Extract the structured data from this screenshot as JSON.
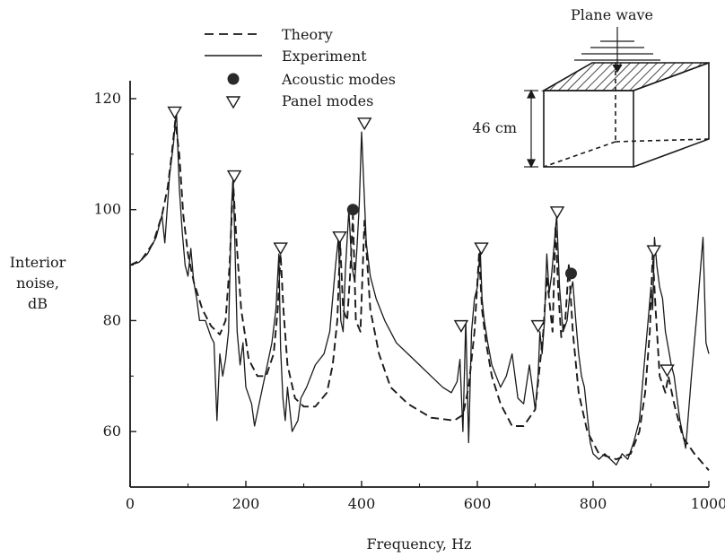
{
  "chart_data": {
    "type": "line",
    "title": "",
    "xlabel": "Frequency, Hz",
    "ylabel": [
      "Interior",
      "noise,",
      "dB"
    ],
    "xlim": [
      0,
      1000
    ],
    "ylim": [
      50,
      120
    ],
    "xticks": [
      0,
      200,
      400,
      600,
      800,
      1000
    ],
    "yticks": [
      60,
      80,
      100,
      120
    ],
    "grid": false,
    "legend_position": "top-center",
    "series": [
      {
        "name": "Theory",
        "style": "dashed",
        "x": [
          0,
          20,
          40,
          55,
          65,
          72,
          78,
          85,
          92,
          100,
          110,
          125,
          140,
          155,
          165,
          172,
          178,
          184,
          192,
          205,
          220,
          235,
          248,
          255,
          260,
          265,
          272,
          285,
          300,
          320,
          340,
          350,
          358,
          363,
          368,
          375,
          380,
          385,
          390,
          398,
          405,
          415,
          430,
          450,
          480,
          520,
          560,
          575,
          585,
          595,
          603,
          608,
          615,
          625,
          640,
          660,
          680,
          700,
          708,
          714,
          720,
          730,
          735,
          740,
          745,
          752,
          758,
          765,
          775,
          790,
          810,
          840,
          865,
          880,
          890,
          898,
          903,
          908,
          915,
          925,
          930,
          940,
          955,
          975,
          1000
        ],
        "y": [
          90,
          91,
          94,
          99,
          104,
          110,
          116,
          110,
          99,
          92,
          87,
          82,
          79,
          77.5,
          80,
          90,
          105,
          94,
          82,
          73,
          70,
          70,
          74,
          82,
          92,
          82,
          72,
          66,
          64.5,
          64.5,
          67,
          72,
          80,
          94,
          82,
          80,
          88,
          99,
          80,
          78,
          98,
          82,
          74,
          68,
          65,
          62.5,
          62,
          63,
          68,
          78,
          92,
          82,
          76,
          70,
          65,
          61,
          61,
          64,
          72,
          78,
          88,
          78,
          97,
          85,
          77,
          80,
          90,
          78,
          67,
          60,
          56,
          55,
          56,
          60,
          67,
          78,
          92,
          82,
          70,
          67,
          70,
          65,
          59,
          56,
          53
        ]
      },
      {
        "name": "Experiment",
        "style": "solid",
        "x": [
          0,
          15,
          30,
          45,
          55,
          60,
          68,
          75,
          80,
          85,
          90,
          95,
          100,
          105,
          110,
          115,
          120,
          130,
          140,
          145,
          150,
          155,
          160,
          165,
          170,
          175,
          178,
          182,
          185,
          190,
          195,
          200,
          210,
          215,
          225,
          235,
          245,
          252,
          257,
          260,
          264,
          268,
          272,
          280,
          290,
          295,
          305,
          320,
          335,
          345,
          355,
          360,
          364,
          368,
          372,
          378,
          383,
          388,
          392,
          396,
          400,
          404,
          408,
          415,
          425,
          440,
          460,
          480,
          500,
          520,
          540,
          555,
          565,
          570,
          575,
          580,
          585,
          590,
          595,
          600,
          605,
          608,
          612,
          618,
          625,
          640,
          650,
          660,
          670,
          680,
          690,
          695,
          700,
          705,
          708,
          712,
          716,
          720,
          724,
          728,
          733,
          737,
          742,
          748,
          755,
          760,
          765,
          770,
          775,
          780,
          785,
          790,
          795,
          800,
          810,
          820,
          830,
          840,
          850,
          860,
          870,
          880,
          885,
          890,
          895,
          900,
          903,
          906,
          910,
          915,
          920,
          925,
          930,
          935,
          940,
          945,
          950,
          960,
          970,
          980,
          990,
          995,
          1000
        ],
        "y": [
          90,
          90.5,
          92,
          95,
          99,
          94,
          106,
          112,
          118,
          104,
          96,
          90,
          88,
          93,
          87,
          84,
          80,
          80,
          77,
          76,
          62,
          74,
          70,
          73,
          78,
          100,
          106,
          90,
          78,
          72,
          76,
          68,
          65,
          61,
          66,
          71,
          76,
          82,
          92,
          75,
          66,
          62,
          68,
          60,
          62,
          66,
          68,
          72,
          74,
          78,
          90,
          95,
          80,
          78,
          89,
          100,
          90,
          87,
          93,
          101,
          114,
          104,
          94,
          88,
          84,
          80,
          76,
          74,
          72,
          70,
          68,
          67,
          69,
          73,
          60,
          80,
          58,
          78,
          84,
          86,
          93,
          84,
          80,
          76,
          72,
          68,
          70,
          74,
          66,
          65,
          72,
          68,
          64,
          70,
          78,
          74,
          80,
          92,
          85,
          88,
          94,
          99,
          86,
          78,
          80,
          85,
          87,
          80,
          74,
          70,
          68,
          63,
          58,
          56,
          55,
          56,
          55,
          54,
          56,
          55,
          58,
          62,
          68,
          74,
          80,
          86,
          82,
          95,
          90,
          86,
          84,
          78,
          75,
          72,
          70,
          66,
          62,
          57,
          70,
          82,
          95,
          76,
          74
        ]
      }
    ],
    "acoustic_modes": [
      {
        "x": 385,
        "y": 100
      },
      {
        "x": 762,
        "y": 88.5
      }
    ],
    "panel_modes": [
      {
        "x": 77,
        "y": 117.5
      },
      {
        "x": 180,
        "y": 106
      },
      {
        "x": 260,
        "y": 93
      },
      {
        "x": 362,
        "y": 95
      },
      {
        "x": 405,
        "y": 115.5
      },
      {
        "x": 572,
        "y": 79
      },
      {
        "x": 607,
        "y": 93
      },
      {
        "x": 705,
        "y": 79
      },
      {
        "x": 738,
        "y": 99.5
      },
      {
        "x": 905,
        "y": 92.5
      },
      {
        "x": 928,
        "y": 71
      }
    ],
    "legend": [
      {
        "key": "theory",
        "label": "Theory"
      },
      {
        "key": "experiment",
        "label": "Experiment"
      },
      {
        "key": "acoustic",
        "label": "Acoustic modes"
      },
      {
        "key": "panel",
        "label": "Panel modes"
      }
    ],
    "inset": {
      "title": "Plane wave",
      "dimension_label": "46 cm"
    }
  }
}
